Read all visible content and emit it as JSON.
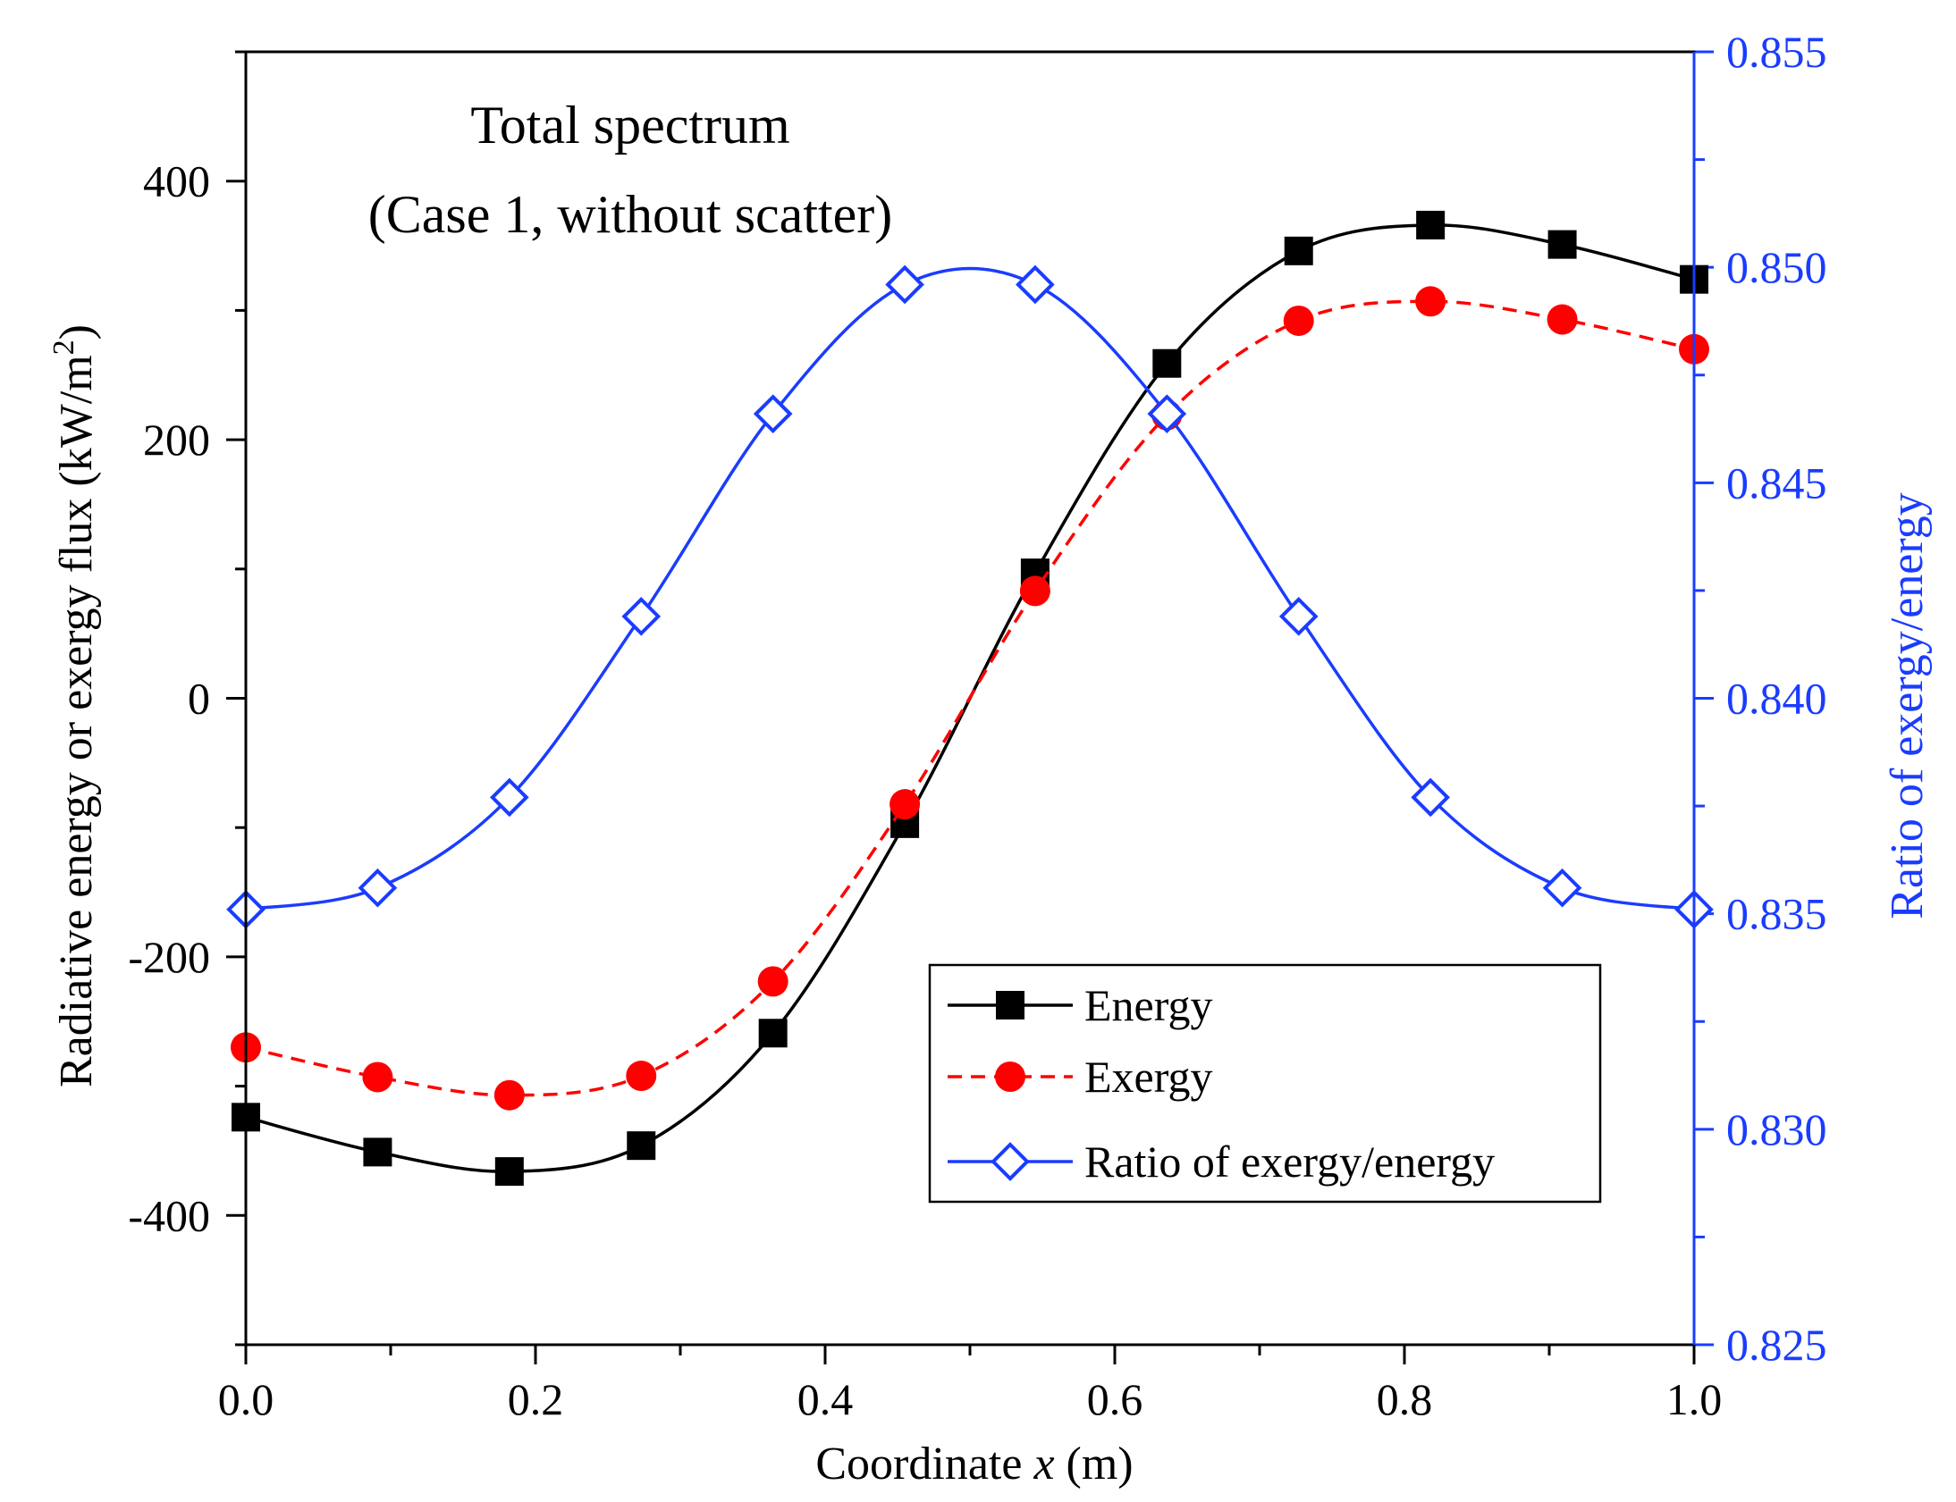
{
  "chart_data": {
    "type": "line",
    "title": "Total spectrum",
    "subtitle": "(Case 1, without scatter)",
    "xlabel_prefix": "Coordinate ",
    "xlabel_var": "x",
    "xlabel_suffix": " (m)",
    "ylabel_main": "Radiative energy or exergy flux (kW/m",
    "ylabel_sup": "2",
    "ylabel_close": ")",
    "y2label": "Ratio of exergy/energy",
    "xlim": [
      0.0,
      1.0
    ],
    "ylim": [
      -500,
      500
    ],
    "y2lim": [
      0.825,
      0.855
    ],
    "x_ticks": [
      "0.0",
      "0.2",
      "0.4",
      "0.6",
      "0.8",
      "1.0"
    ],
    "y_ticks": [
      "-400",
      "-200",
      "0",
      "200",
      "400"
    ],
    "y2_ticks": [
      "0.825",
      "0.830",
      "0.835",
      "0.840",
      "0.845",
      "0.850",
      "0.855"
    ],
    "x": [
      0.0,
      0.091,
      0.182,
      0.273,
      0.364,
      0.455,
      0.545,
      0.636,
      0.727,
      0.818,
      0.909,
      1.0
    ],
    "series": [
      {
        "name": "Energy",
        "axis": "left",
        "values": [
          -324,
          -351,
          -366,
          -346,
          -259,
          -97,
          97,
          259,
          346,
          366,
          351,
          324
        ],
        "color": "#000000",
        "marker": "square",
        "line": "solid"
      },
      {
        "name": "Exergy",
        "axis": "left",
        "values": [
          -270,
          -293,
          -307,
          -292,
          -219,
          -82,
          83,
          219,
          292,
          307,
          293,
          270
        ],
        "color": "#ff0000",
        "marker": "circle",
        "line": "dashed"
      },
      {
        "name": "Ratio of exergy/energy",
        "axis": "right",
        "values": [
          0.8351,
          0.8356,
          0.8377,
          0.8419,
          0.8466,
          0.8496,
          0.8496,
          0.8466,
          0.8419,
          0.8377,
          0.8356,
          0.8351
        ],
        "color": "#1a3cff",
        "marker": "diamond-open",
        "line": "solid"
      }
    ],
    "legend": [
      "Energy",
      "Exergy",
      "Ratio of exergy/energy"
    ],
    "legend_position": "lower-right",
    "grid": false
  }
}
